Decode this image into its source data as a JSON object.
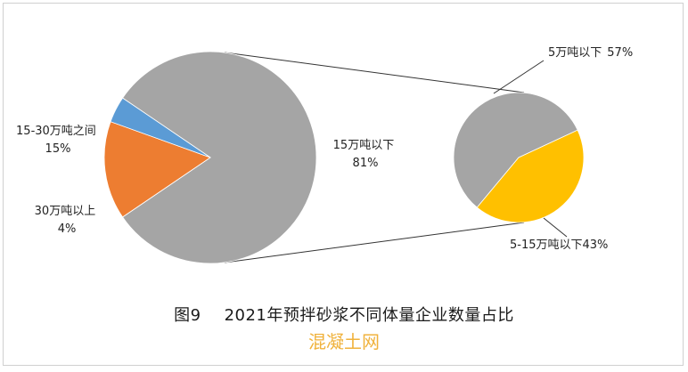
{
  "chart_data": {
    "type": "pie",
    "main_pie": {
      "slices": [
        {
          "label": "15万吨以下",
          "value": 81,
          "value_label": "81%",
          "color": "#a5a5a5"
        },
        {
          "label": "15-30万吨之间",
          "value": 15,
          "value_label": "15%",
          "color": "#ed7d31"
        },
        {
          "label": "30万吨以上",
          "value": 4,
          "value_label": "4%",
          "color": "#5b9bd5"
        }
      ]
    },
    "sub_pie": {
      "parent": "15万吨以下",
      "slices": [
        {
          "label": "5万吨以下",
          "value": 57,
          "value_label": "57%",
          "color": "#a5a5a5"
        },
        {
          "label": "5-15万吨以下",
          "value": 43,
          "value_label": "43%",
          "color": "#ffc000"
        }
      ]
    }
  },
  "caption": {
    "figure_number": "图9",
    "title": "2021年预拌砂浆不同体量企业数量占比"
  },
  "watermark": "混凝土网"
}
